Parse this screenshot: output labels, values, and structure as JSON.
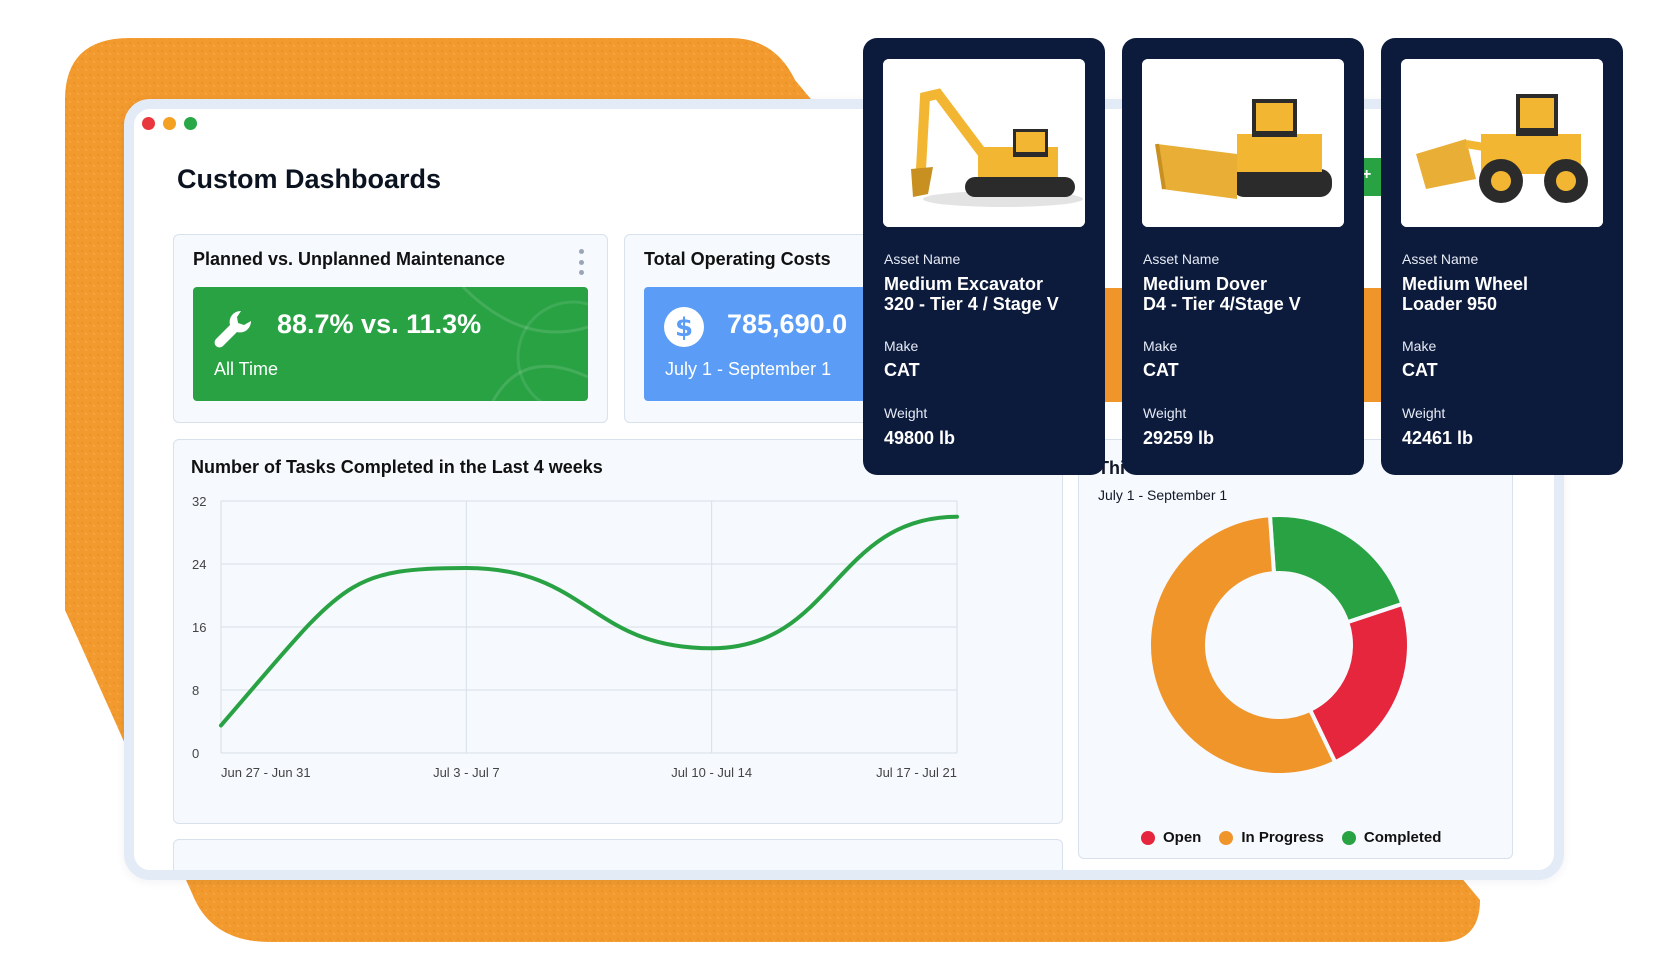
{
  "colors": {
    "orange_backdrop": "#f29a2e",
    "navy": "#0c1a3b",
    "green": "#29a244",
    "blue": "#5b9cf6",
    "red": "#e5263d",
    "orange": "#f0952a"
  },
  "dashboard": {
    "title": "Custom Dashboards"
  },
  "maintenance_card": {
    "title": "Planned vs. Unplanned Maintenance",
    "value": "88.7% vs. 11.3%",
    "period": "All Time",
    "icon": "wrench-icon"
  },
  "costs_card": {
    "title": "Total Operating Costs",
    "value": "785,690.0",
    "period": "July 1 - September 1",
    "icon": "dollar-icon"
  },
  "tasks_card": {
    "title": "Number of Tasks Completed in the Last 4 weeks"
  },
  "status_card": {
    "title_fragment": "Thi",
    "period": "July 1 - September 1"
  },
  "chart_data": [
    {
      "type": "line",
      "title": "Number of Tasks Completed in the Last 4 weeks",
      "categories": [
        "Jun 27 - Jun 31",
        "Jul 3 - Jul 7",
        "Jul 10 - Jul 14",
        "Jul 17 - Jul 21"
      ],
      "yticks": [
        0,
        8,
        16,
        24,
        32
      ],
      "ylim": [
        0,
        32
      ],
      "grid": true,
      "series": [
        {
          "values": [
            3.5,
            23.5,
            13.3,
            30
          ],
          "color": "#29a244"
        }
      ]
    },
    {
      "type": "pie",
      "donut": true,
      "legend_position": "bottom",
      "series": [
        {
          "name": "Open",
          "value": 23,
          "color": "#e5263d"
        },
        {
          "name": "In Progress",
          "value": 56,
          "color": "#f0952a"
        },
        {
          "name": "Completed",
          "value": 21,
          "color": "#29a244"
        }
      ]
    }
  ],
  "assets": [
    {
      "name_label": "Asset Name",
      "name_line1": "Medium Excavator",
      "name_line2": "320 - Tier 4 / Stage V",
      "make_label": "Make",
      "make": "CAT",
      "weight_label": "Weight",
      "weight": "49800 lb",
      "image": "excavator-image"
    },
    {
      "name_label": "Asset Name",
      "name_line1": "Medium Dover",
      "name_line2": "D4 - Tier 4/Stage V",
      "make_label": "Make",
      "make": "CAT",
      "weight_label": "Weight",
      "weight": "29259 lb",
      "image": "dozer-image"
    },
    {
      "name_label": "Asset Name",
      "name_line1": "Medium Wheel",
      "name_line2": "Loader 950",
      "make_label": "Make",
      "make": "CAT",
      "weight_label": "Weight",
      "weight": "42461 lb",
      "image": "wheel-loader-image"
    }
  ]
}
